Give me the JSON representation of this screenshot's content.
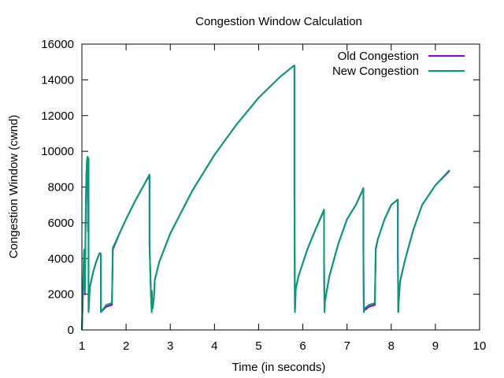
{
  "chart_data": {
    "type": "line",
    "title": "Congestion Window Calculation",
    "xlabel": "Time (in seconds)",
    "ylabel": "Congestion Window (cwnd)",
    "xlim": [
      1,
      10
    ],
    "ylim": [
      0,
      16000
    ],
    "grid": false,
    "legend_position": "top-right",
    "xticks": [
      1,
      2,
      3,
      4,
      5,
      6,
      7,
      8,
      9,
      10
    ],
    "yticks": [
      0,
      2000,
      4000,
      6000,
      8000,
      10000,
      12000,
      14000,
      16000
    ],
    "xtick_labels": [
      "1",
      "2",
      "3",
      "4",
      "5",
      "6",
      "7",
      "8",
      "9",
      "10"
    ],
    "ytick_labels": [
      "0",
      "2000",
      "4000",
      "6000",
      "8000",
      "10000",
      "12000",
      "14000",
      "16000"
    ],
    "series": [
      {
        "name": "Old Congestion",
        "color": "#9400d3",
        "x": [
          1.0,
          1.01,
          1.02,
          1.03,
          1.04,
          1.05,
          1.06,
          1.07,
          1.08,
          1.09,
          1.1,
          1.11,
          1.12,
          1.13,
          1.14,
          1.15,
          1.15,
          1.18,
          1.25,
          1.32,
          1.4,
          1.42,
          1.43,
          1.43,
          1.55,
          1.67,
          1.68,
          1.7,
          1.85,
          2.0,
          2.2,
          2.4,
          2.53,
          2.53,
          2.56,
          2.58,
          2.58,
          2.6,
          2.63,
          2.65,
          2.75,
          3.0,
          3.5,
          4.0,
          4.5,
          5.0,
          5.5,
          5.8,
          5.81,
          5.81,
          5.82,
          5.84,
          5.9,
          6.1,
          6.3,
          6.48,
          6.48,
          6.49,
          6.5,
          6.6,
          6.8,
          7.0,
          7.2,
          7.37,
          7.37,
          7.38,
          7.39,
          7.5,
          7.62,
          7.63,
          7.65,
          7.7,
          7.85,
          8.0,
          8.15,
          8.15,
          8.16,
          8.17,
          8.2,
          8.3,
          8.5,
          8.7,
          9.0,
          9.32
        ],
        "y": [
          0,
          800,
          1500,
          2500,
          3500,
          4400,
          3000,
          2000,
          5000,
          7000,
          8500,
          9200,
          9600,
          9700,
          5500,
          9600,
          1000,
          2400,
          3200,
          3800,
          4300,
          4300,
          4200,
          1000,
          1300,
          1400,
          1400,
          4500,
          5400,
          6200,
          7200,
          8100,
          8650,
          4800,
          2200,
          1000,
          2200,
          1200,
          1800,
          2800,
          3800,
          5400,
          7800,
          9800,
          11500,
          13000,
          14200,
          14800,
          14800,
          8000,
          1000,
          2300,
          3000,
          4500,
          5700,
          6700,
          3900,
          1000,
          1600,
          3000,
          4800,
          6200,
          7000,
          7900,
          4500,
          1000,
          1100,
          1300,
          1400,
          1400,
          4500,
          5100,
          6200,
          7000,
          7300,
          4200,
          1000,
          1600,
          2700,
          3800,
          5600,
          7000,
          8100,
          8900
        ]
      },
      {
        "name": "New Congestion",
        "color": "#009e73",
        "x": [
          1.0,
          1.01,
          1.02,
          1.03,
          1.04,
          1.05,
          1.06,
          1.07,
          1.08,
          1.09,
          1.1,
          1.11,
          1.12,
          1.13,
          1.14,
          1.15,
          1.15,
          1.18,
          1.25,
          1.32,
          1.4,
          1.42,
          1.43,
          1.43,
          1.55,
          1.67,
          1.68,
          1.7,
          1.85,
          2.0,
          2.2,
          2.4,
          2.53,
          2.53,
          2.56,
          2.58,
          2.58,
          2.6,
          2.63,
          2.65,
          2.75,
          3.0,
          3.5,
          4.0,
          4.5,
          5.0,
          5.5,
          5.8,
          5.81,
          5.81,
          5.82,
          5.84,
          5.9,
          6.1,
          6.3,
          6.48,
          6.48,
          6.49,
          6.5,
          6.6,
          6.8,
          7.0,
          7.2,
          7.37,
          7.37,
          7.38,
          7.39,
          7.5,
          7.62,
          7.63,
          7.65,
          7.7,
          7.85,
          8.0,
          8.15,
          8.15,
          8.16,
          8.17,
          8.2,
          8.3,
          8.5,
          8.7,
          9.0,
          9.32
        ],
        "y": [
          0,
          900,
          1800,
          2800,
          3900,
          4500,
          3000,
          2100,
          5200,
          7200,
          8600,
          9300,
          9600,
          9700,
          5600,
          9600,
          1000,
          2400,
          3200,
          3800,
          4300,
          4300,
          4200,
          1000,
          1400,
          1500,
          1500,
          4600,
          5400,
          6200,
          7200,
          8100,
          8700,
          4800,
          2200,
          1000,
          2200,
          1200,
          1800,
          2800,
          3800,
          5400,
          7800,
          9800,
          11500,
          13000,
          14200,
          14800,
          14800,
          8000,
          1000,
          2300,
          3000,
          4500,
          5700,
          6750,
          3900,
          1000,
          1600,
          3000,
          4800,
          6200,
          7000,
          7950,
          4500,
          1000,
          1200,
          1400,
          1500,
          1500,
          4600,
          5100,
          6200,
          7000,
          7300,
          4200,
          1000,
          1600,
          2700,
          3800,
          5600,
          7000,
          8100,
          8950
        ]
      }
    ]
  }
}
